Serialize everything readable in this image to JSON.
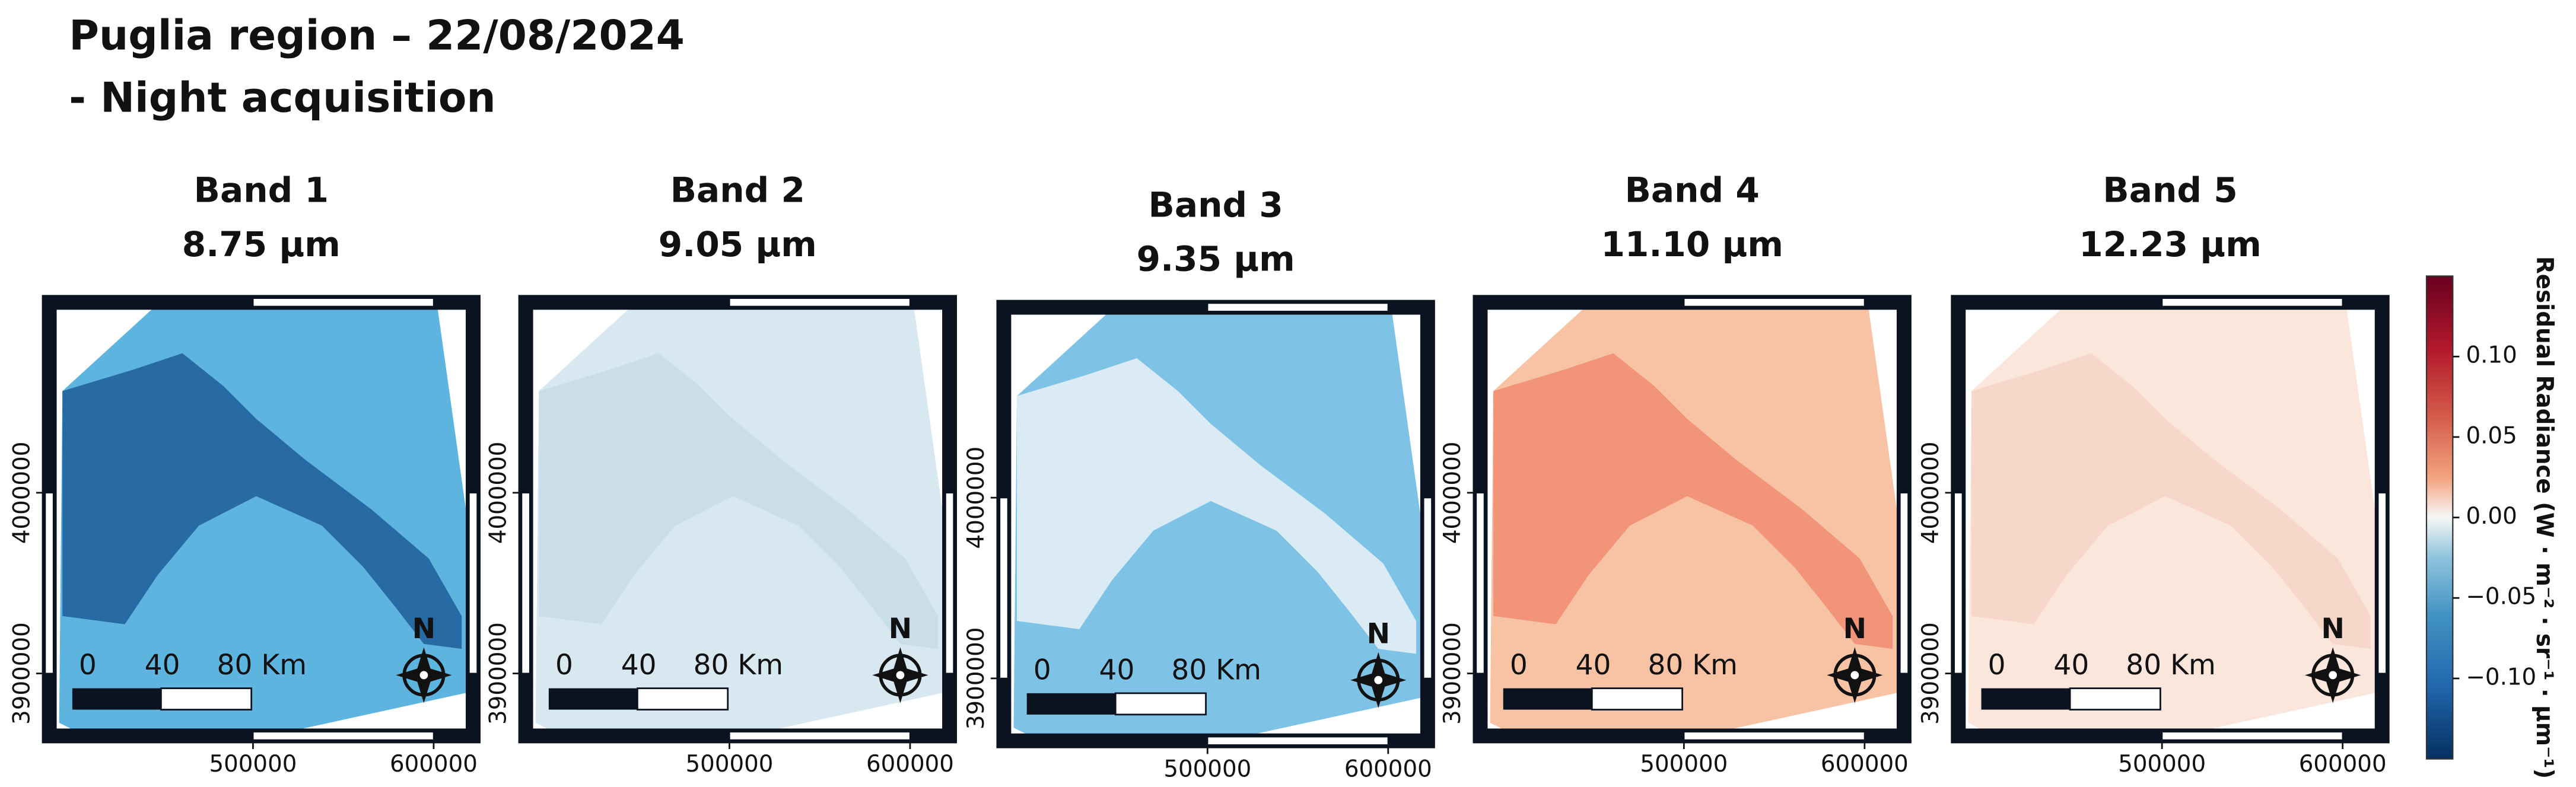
{
  "title_lines": [
    "Puglia region – 22/08/2024",
    "- Night acquisition"
  ],
  "panels": [
    {
      "band": "Band 1",
      "wavelength": "8.75 μm"
    },
    {
      "band": "Band 2",
      "wavelength": "9.05 μm"
    },
    {
      "band": "Band 3",
      "wavelength": "9.35 μm"
    },
    {
      "band": "Band 4",
      "wavelength": "11.10 μm"
    },
    {
      "band": "Band 5",
      "wavelength": "12.23 μm"
    }
  ],
  "map_axes": {
    "xlim": [
      383600,
      625500
    ],
    "ylim": [
      3861800,
      4109000
    ],
    "xticks": [
      500000,
      600000
    ],
    "yticks": [
      3900000,
      4000000
    ]
  },
  "scalebar": {
    "labels": [
      "0",
      "40",
      "80 Km"
    ]
  },
  "north": "N",
  "colorbar": {
    "label": "Residual Radiance (W · m⁻² · sr⁻¹ · μm⁻¹)",
    "ylim": [
      -0.15,
      0.15
    ],
    "yticks": [
      {
        "value": -0.1,
        "label": "−0.10"
      },
      {
        "value": -0.05,
        "label": "−0.05"
      },
      {
        "value": 0,
        "label": "0.00"
      },
      {
        "value": 0.05,
        "label": "0.05"
      },
      {
        "value": 0.1,
        "label": "0.10"
      }
    ]
  }
}
